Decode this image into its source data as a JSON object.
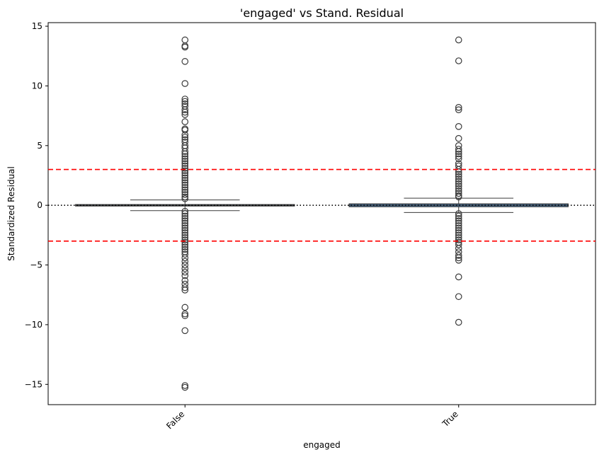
{
  "chart_data": {
    "type": "box",
    "title": "'engaged' vs Stand. Residual",
    "xlabel": "engaged",
    "ylabel": "Standardized Residual",
    "categories": [
      "False",
      "True"
    ],
    "ylim": [
      -16.7,
      15.3
    ],
    "yticks": [
      -15,
      -10,
      -5,
      0,
      5,
      10,
      15
    ],
    "grid": false,
    "box_color": "#4878a8",
    "reference_lines": [
      {
        "y": 3,
        "color": "#ff0000",
        "style": "dashed"
      },
      {
        "y": -3,
        "color": "#ff0000",
        "style": "dashed"
      },
      {
        "y": 0,
        "color": "#000000",
        "style": "dotted"
      }
    ],
    "boxes": [
      {
        "category": "False",
        "q1": -0.06,
        "median": 0.0,
        "q3": 0.06,
        "whisker_low": -0.45,
        "whisker_high": 0.45,
        "outliers": [
          13.85,
          13.35,
          13.25,
          12.05,
          10.2,
          8.9,
          8.7,
          8.5,
          8.3,
          8.0,
          7.8,
          7.6,
          7.0,
          6.4,
          6.3,
          5.9,
          5.7,
          5.5,
          5.3,
          5.0,
          4.8,
          4.5,
          4.3,
          4.1,
          3.9,
          3.7,
          3.5,
          3.3,
          3.1,
          2.9,
          2.7,
          2.5,
          2.3,
          2.1,
          1.9,
          1.7,
          1.5,
          1.3,
          1.1,
          0.9,
          0.7,
          0.55,
          -0.5,
          -0.7,
          -0.9,
          -1.1,
          -1.3,
          -1.5,
          -1.7,
          -1.9,
          -2.1,
          -2.3,
          -2.5,
          -2.7,
          -2.9,
          -3.1,
          -3.3,
          -3.5,
          -3.7,
          -3.9,
          -4.1,
          -4.4,
          -4.7,
          -5.0,
          -5.3,
          -5.6,
          -5.9,
          -6.3,
          -6.6,
          -6.9,
          -7.1,
          -8.55,
          -9.1,
          -9.25,
          -10.5,
          -15.1,
          -15.25
        ]
      },
      {
        "category": "True",
        "q1": -0.12,
        "median": 0.0,
        "q3": 0.12,
        "whisker_low": -0.6,
        "whisker_high": 0.6,
        "outliers": [
          13.85,
          12.1,
          8.2,
          8.0,
          6.6,
          5.6,
          5.0,
          4.7,
          4.5,
          4.3,
          4.1,
          3.9,
          3.5,
          3.3,
          3.0,
          2.8,
          2.6,
          2.4,
          2.2,
          2.0,
          1.8,
          1.6,
          1.4,
          1.2,
          1.0,
          0.8,
          0.7,
          -0.7,
          -0.9,
          -1.1,
          -1.3,
          -1.5,
          -1.7,
          -1.9,
          -2.1,
          -2.3,
          -2.5,
          -2.7,
          -2.9,
          -3.1,
          -3.3,
          -3.6,
          -3.9,
          -4.2,
          -4.4,
          -4.6,
          -6.0,
          -7.65,
          -9.8
        ]
      }
    ]
  }
}
